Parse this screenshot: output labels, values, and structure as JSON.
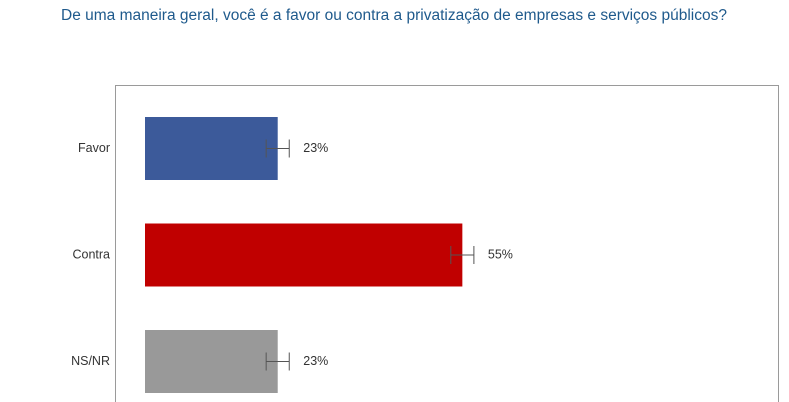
{
  "chart_data": {
    "type": "bar",
    "orientation": "horizontal",
    "title": "De uma maneira geral, você é a favor ou contra a privatização de empresas e serviços públicos?",
    "categories": [
      "Favor",
      "Contra",
      "NS/NR"
    ],
    "values": [
      23,
      55,
      23
    ],
    "value_labels": [
      "23%",
      "55%",
      "23%"
    ],
    "errors": [
      2,
      2,
      2
    ],
    "colors": [
      "#3c5a9a",
      "#c00000",
      "#999999"
    ]
  }
}
